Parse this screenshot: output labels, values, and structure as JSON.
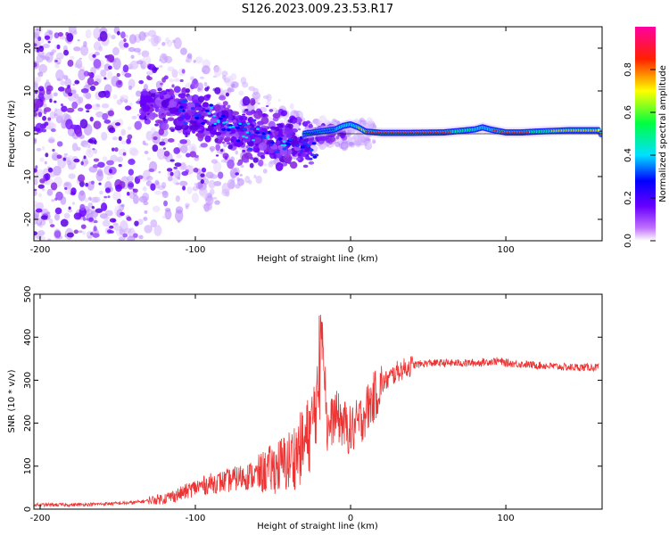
{
  "title": "S126.2023.009.23.53.R17",
  "chart_data": [
    {
      "type": "heatmap",
      "xlabel": "Height of straight line (km)",
      "ylabel": "Frequency (Hz)",
      "xlim": [
        -204,
        162
      ],
      "ylim": [
        -25,
        25
      ],
      "xticks": [
        -200,
        -100,
        0,
        100
      ],
      "yticks": [
        -20,
        -10,
        0,
        10,
        20
      ],
      "grid": false,
      "colorbar": {
        "label": "Normalized spectral amplitude",
        "range": [
          0,
          1
        ],
        "ticks": [
          "0.0",
          "0.2",
          "0.4",
          "0.6",
          "0.8"
        ],
        "colormap": [
          "#ffffff",
          "#8a2be2",
          "#0000ff",
          "#00ffff",
          "#00ff00",
          "#ffff00",
          "#ff0000",
          "#ff00ff"
        ]
      },
      "ridge": {
        "x": [
          -30,
          -20,
          -10,
          -5,
          0,
          5,
          10,
          20,
          40,
          60,
          80,
          85,
          90,
          100,
          110,
          120,
          140,
          160
        ],
        "y": [
          0,
          0.5,
          1,
          1.8,
          2.2,
          1.5,
          0.5,
          0.2,
          0.2,
          0.3,
          1,
          1.5,
          1,
          0.3,
          0.3,
          0.5,
          0.8,
          0.8
        ]
      },
      "main_line_y": 0
    },
    {
      "type": "line",
      "xlabel": "Height of straight line (km)",
      "ylabel": "SNR (10 * v/v)",
      "xlim": [
        -204,
        162
      ],
      "ylim": [
        0,
        500
      ],
      "xticks": [
        -200,
        -100,
        0,
        100
      ],
      "yticks": [
        0,
        100,
        200,
        300,
        400,
        500
      ],
      "grid": false,
      "line_color": "#ee3333",
      "series": [
        {
          "x": [
            -204,
            -180,
            -160,
            -140,
            -120,
            -110,
            -100,
            -90,
            -80,
            -70,
            -60,
            -50,
            -40,
            -30,
            -25,
            -20,
            -18,
            -15,
            -10,
            -5,
            0,
            5,
            10,
            20,
            30,
            40,
            50,
            60,
            80,
            95,
            100,
            120,
            140,
            160
          ],
          "values": [
            10,
            10,
            12,
            15,
            25,
            35,
            50,
            60,
            65,
            75,
            80,
            95,
            110,
            150,
            190,
            300,
            480,
            180,
            220,
            200,
            180,
            200,
            230,
            290,
            320,
            335,
            340,
            340,
            340,
            345,
            340,
            335,
            330,
            330
          ]
        }
      ]
    }
  ]
}
